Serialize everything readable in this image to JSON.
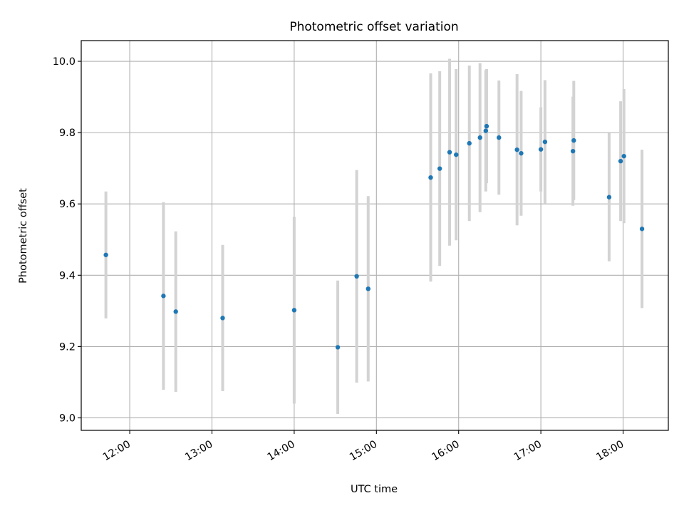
{
  "chart_data": {
    "type": "scatter",
    "title": "Photometric offset variation",
    "xlabel": "UTC time",
    "ylabel": "Photometric offset",
    "x_ticks": [
      {
        "t": 12.0,
        "label": "12:00"
      },
      {
        "t": 13.0,
        "label": "13:00"
      },
      {
        "t": 14.0,
        "label": "14:00"
      },
      {
        "t": 15.0,
        "label": "15:00"
      },
      {
        "t": 16.0,
        "label": "16:00"
      },
      {
        "t": 17.0,
        "label": "17:00"
      },
      {
        "t": 18.0,
        "label": "18:00"
      }
    ],
    "y_ticks": [
      {
        "v": 9.0,
        "label": "9.0"
      },
      {
        "v": 9.2,
        "label": "9.2"
      },
      {
        "v": 9.4,
        "label": "9.4"
      },
      {
        "v": 9.6,
        "label": "9.6"
      },
      {
        "v": 9.8,
        "label": "9.8"
      },
      {
        "v": 10.0,
        "label": "10.0"
      }
    ],
    "xlim": [
      11.41,
      18.55
    ],
    "ylim": [
      8.965,
      10.058
    ],
    "grid": true,
    "point_color": "#1f77b4",
    "errorbar_color": "#d3d3d3",
    "points": [
      {
        "x": 11.71,
        "y": 9.457,
        "err": 0.178
      },
      {
        "x": 12.41,
        "y": 9.342,
        "err": 0.263
      },
      {
        "x": 12.56,
        "y": 9.298,
        "err": 0.225
      },
      {
        "x": 13.13,
        "y": 9.28,
        "err": 0.205
      },
      {
        "x": 14.0,
        "y": 9.302,
        "err": 0.262
      },
      {
        "x": 14.53,
        "y": 9.198,
        "err": 0.187
      },
      {
        "x": 14.76,
        "y": 9.397,
        "err": 0.298
      },
      {
        "x": 14.9,
        "y": 9.362,
        "err": 0.26
      },
      {
        "x": 15.66,
        "y": 9.674,
        "err": 0.292
      },
      {
        "x": 15.77,
        "y": 9.699,
        "err": 0.273
      },
      {
        "x": 15.89,
        "y": 9.745,
        "err": 0.262
      },
      {
        "x": 15.97,
        "y": 9.738,
        "err": 0.24
      },
      {
        "x": 16.13,
        "y": 9.77,
        "err": 0.218
      },
      {
        "x": 16.26,
        "y": 9.786,
        "err": 0.209
      },
      {
        "x": 16.33,
        "y": 9.805,
        "err": 0.17
      },
      {
        "x": 16.34,
        "y": 9.818,
        "err": 0.16
      },
      {
        "x": 16.49,
        "y": 9.786,
        "err": 0.16
      },
      {
        "x": 16.71,
        "y": 9.752,
        "err": 0.212
      },
      {
        "x": 16.76,
        "y": 9.742,
        "err": 0.175
      },
      {
        "x": 17.0,
        "y": 9.753,
        "err": 0.118
      },
      {
        "x": 17.05,
        "y": 9.774,
        "err": 0.173
      },
      {
        "x": 17.39,
        "y": 9.748,
        "err": 0.153
      },
      {
        "x": 17.4,
        "y": 9.778,
        "err": 0.167
      },
      {
        "x": 17.83,
        "y": 9.619,
        "err": 0.18
      },
      {
        "x": 17.97,
        "y": 9.72,
        "err": 0.168
      },
      {
        "x": 18.01,
        "y": 9.734,
        "err": 0.188
      },
      {
        "x": 18.23,
        "y": 9.53,
        "err": 0.222
      }
    ]
  }
}
